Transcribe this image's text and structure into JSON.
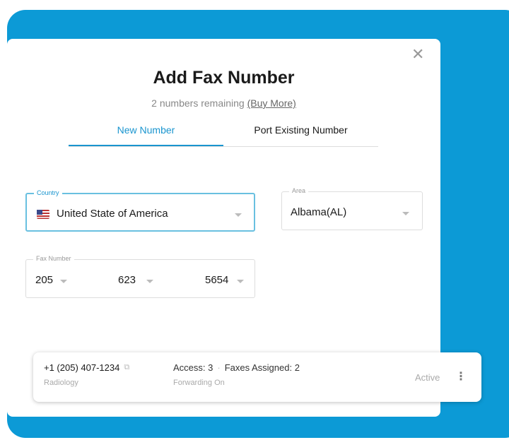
{
  "dialog": {
    "title": "Add Fax Number",
    "remaining": "2 numbers remaining",
    "buy_more": "(Buy More)"
  },
  "tabs": [
    {
      "label": "New Number",
      "active": true
    },
    {
      "label": "Port Existing Number",
      "active": false
    }
  ],
  "country": {
    "label": "Country",
    "value": "United State of America",
    "flag": "us-flag-icon"
  },
  "area": {
    "label": "Area",
    "value": "Albama(AL)"
  },
  "fax_number": {
    "label": "Fax Number",
    "parts": [
      "205",
      "623",
      "5654"
    ]
  },
  "number_row": {
    "number": "+1 (205) 407-1234",
    "department": "Radiology",
    "access": "Access: 3",
    "faxes": "Faxes Assigned: 2",
    "forwarding": "Forwarding On",
    "status": "Active"
  },
  "colors": {
    "accent": "#1a95cf",
    "background": "#0c9ad6"
  }
}
